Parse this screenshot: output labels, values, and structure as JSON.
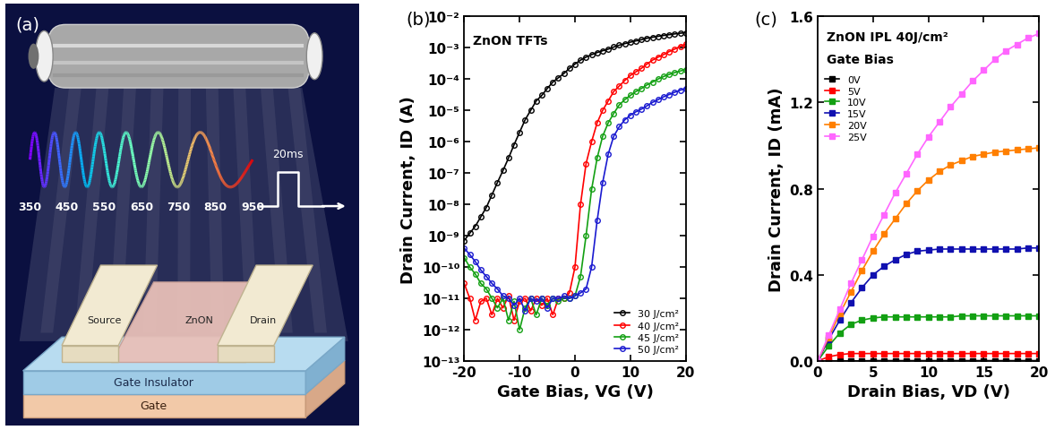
{
  "diagram": {
    "panel_label": "(a)",
    "wavelengths": [
      350,
      450,
      550,
      650,
      750,
      850,
      950
    ],
    "pulse_label": "20ms",
    "layers": {
      "source": "Source",
      "channel": "ZnON",
      "drain": "Drain",
      "insulator": "Gate Insulator",
      "gate": "Gate"
    }
  },
  "chart_data": [
    {
      "type": "line",
      "annotations": [
        "(b)",
        "ZnON TFTs"
      ],
      "x_label": "Gate Bias, VG (V)",
      "y_label": "Drain Current, ID (A)",
      "log": "y",
      "legend": "lower right",
      "marker": "o",
      "x": [
        -20,
        -19,
        -18,
        -17,
        -16,
        -15,
        -14,
        -13,
        -12,
        -11,
        -10,
        -9,
        -8,
        -7,
        -6,
        -5,
        -4,
        -3,
        -2,
        -1,
        0,
        1,
        2,
        3,
        4,
        5,
        6,
        7,
        8,
        9,
        10,
        11,
        12,
        13,
        14,
        15,
        16,
        17,
        18,
        19,
        20
      ],
      "xlim": [
        -20,
        20
      ],
      "xticks": [
        -20,
        -10,
        0,
        10,
        20
      ],
      "ylim": [
        1e-13,
        0.01
      ],
      "yticks": [
        {
          "value": 1e-13,
          "label": "10⁻¹³"
        },
        {
          "value": 1e-12,
          "label": "10⁻¹²"
        },
        {
          "value": 1e-11,
          "label": "10⁻¹¹"
        },
        {
          "value": 1e-10,
          "label": "10⁻¹⁰"
        },
        {
          "value": 1e-09,
          "label": "10⁻⁹"
        },
        {
          "value": 1e-08,
          "label": "10⁻⁸"
        },
        {
          "value": 1e-07,
          "label": "10⁻⁷"
        },
        {
          "value": 1e-06,
          "label": "10⁻⁶"
        },
        {
          "value": 1e-05,
          "label": "10⁻⁵"
        },
        {
          "value": 0.0001,
          "label": "10⁻⁴"
        },
        {
          "value": 0.001,
          "label": "10⁻³"
        },
        {
          "value": 0.01,
          "label": "10⁻²"
        }
      ],
      "series": [
        {
          "name": "30 J/cm²",
          "color": "#000000",
          "values": [
            7e-10,
            1.2e-09,
            2e-09,
            4e-09,
            8e-09,
            2e-08,
            5e-08,
            1.2e-07,
            3e-07,
            8e-07,
            2e-06,
            5e-06,
            1e-05,
            2e-05,
            3e-05,
            5e-05,
            8e-05,
            0.00011,
            0.00015,
            0.00022,
            0.0003,
            0.0004,
            0.0005,
            0.0006,
            0.0007,
            0.0008,
            0.0009,
            0.00105,
            0.0012,
            0.00135,
            0.0015,
            0.00165,
            0.0018,
            0.002,
            0.00215,
            0.0023,
            0.00245,
            0.0026,
            0.00275,
            0.0029,
            0.003
          ]
        },
        {
          "name": "40 J/cm²",
          "color": "#ff0000",
          "values": [
            3e-11,
            1e-11,
            2e-12,
            8e-12,
            1e-11,
            3e-12,
            1e-11,
            5e-12,
            1.2e-11,
            2e-12,
            8e-12,
            1e-11,
            4e-12,
            1e-11,
            6e-12,
            1e-11,
            3e-12,
            1e-11,
            1e-11,
            1.5e-11,
            1e-10,
            1e-08,
            2e-07,
            1e-06,
            4e-06,
            1e-05,
            2e-05,
            4e-05,
            6e-05,
            9e-05,
            0.00013,
            0.00017,
            0.00022,
            0.0003,
            0.0004,
            0.0005,
            0.0006,
            0.00075,
            0.0009,
            0.0011,
            0.0013
          ]
        },
        {
          "name": "45 J/cm²",
          "color": "#13a013",
          "values": [
            2e-10,
            1e-10,
            6e-11,
            3e-11,
            2e-11,
            1e-11,
            5e-12,
            1e-11,
            2e-12,
            8e-12,
            1e-12,
            5e-12,
            1e-11,
            3e-12,
            1e-11,
            6e-12,
            1e-11,
            8e-12,
            1e-11,
            1e-11,
            1.2e-11,
            5e-11,
            1e-09,
            3e-08,
            3e-07,
            1.5e-06,
            4e-06,
            8e-06,
            1.5e-05,
            2.2e-05,
            3e-05,
            4e-05,
            5e-05,
            6.5e-05,
            8e-05,
            0.0001,
            0.00012,
            0.00014,
            0.00016,
            0.00018,
            0.0002
          ]
        },
        {
          "name": "50 J/cm²",
          "color": "#1a1ad0",
          "values": [
            4e-10,
            2.5e-10,
            1.5e-10,
            8e-11,
            5e-11,
            3e-11,
            2e-11,
            1.2e-11,
            1e-11,
            6e-12,
            1e-11,
            4e-12,
            1e-11,
            8e-12,
            1e-11,
            5e-12,
            1e-11,
            1e-11,
            1.2e-11,
            1e-11,
            1.2e-11,
            1.5e-11,
            2e-11,
            1e-10,
            3e-09,
            5e-08,
            4e-07,
            1.5e-06,
            3e-06,
            5e-06,
            7e-06,
            9e-06,
            1.1e-05,
            1.4e-05,
            1.8e-05,
            2.2e-05,
            2.7e-05,
            3.2e-05,
            3.8e-05,
            4.4e-05,
            5e-05
          ]
        }
      ]
    },
    {
      "type": "line",
      "annotations": [
        "(c)",
        "ZnON IPL 40J/cm²",
        "Gate Bias"
      ],
      "x_label": "Drain Bias, VD (V)",
      "y_label": "Drain Current, ID (mA)",
      "legend": "upper left",
      "marker": "s",
      "x": [
        0,
        1,
        2,
        3,
        4,
        5,
        6,
        7,
        8,
        9,
        10,
        11,
        12,
        13,
        14,
        15,
        16,
        17,
        18,
        19,
        20
      ],
      "xlim": [
        0,
        20
      ],
      "xticks": [
        0,
        5,
        10,
        15,
        20
      ],
      "ylim": [
        0.0,
        1.6
      ],
      "yticks": [
        0.0,
        0.4,
        0.8,
        1.2,
        1.6
      ],
      "series": [
        {
          "name": "0V",
          "color": "#000000",
          "values": [
            0,
            0.001,
            0.001,
            0.001,
            0.001,
            0.002,
            0.002,
            0.002,
            0.002,
            0.002,
            0.002,
            0.002,
            0.002,
            0.002,
            0.002,
            0.002,
            0.002,
            0.002,
            0.002,
            0.002,
            0.002
          ]
        },
        {
          "name": "5V",
          "color": "#ff0000",
          "values": [
            0,
            0.02,
            0.03,
            0.035,
            0.035,
            0.035,
            0.035,
            0.035,
            0.035,
            0.035,
            0.035,
            0.035,
            0.035,
            0.035,
            0.035,
            0.035,
            0.035,
            0.035,
            0.035,
            0.035,
            0.035
          ]
        },
        {
          "name": "10V",
          "color": "#13a013",
          "values": [
            0,
            0.07,
            0.13,
            0.17,
            0.19,
            0.2,
            0.205,
            0.205,
            0.205,
            0.205,
            0.205,
            0.205,
            0.205,
            0.21,
            0.21,
            0.21,
            0.21,
            0.21,
            0.21,
            0.21,
            0.21
          ]
        },
        {
          "name": "15V",
          "color": "#1010b0",
          "values": [
            0,
            0.1,
            0.19,
            0.27,
            0.34,
            0.4,
            0.44,
            0.47,
            0.495,
            0.51,
            0.515,
            0.52,
            0.52,
            0.52,
            0.52,
            0.52,
            0.52,
            0.52,
            0.52,
            0.525,
            0.525
          ]
        },
        {
          "name": "20V",
          "color": "#ff7f00",
          "values": [
            0,
            0.11,
            0.22,
            0.32,
            0.42,
            0.51,
            0.59,
            0.66,
            0.73,
            0.79,
            0.84,
            0.88,
            0.91,
            0.93,
            0.95,
            0.96,
            0.97,
            0.975,
            0.98,
            0.985,
            0.99
          ]
        },
        {
          "name": "25V",
          "color": "#ff66ff",
          "values": [
            0,
            0.12,
            0.24,
            0.36,
            0.47,
            0.58,
            0.68,
            0.78,
            0.87,
            0.96,
            1.04,
            1.11,
            1.18,
            1.24,
            1.3,
            1.35,
            1.4,
            1.44,
            1.47,
            1.5,
            1.52
          ]
        }
      ]
    }
  ]
}
